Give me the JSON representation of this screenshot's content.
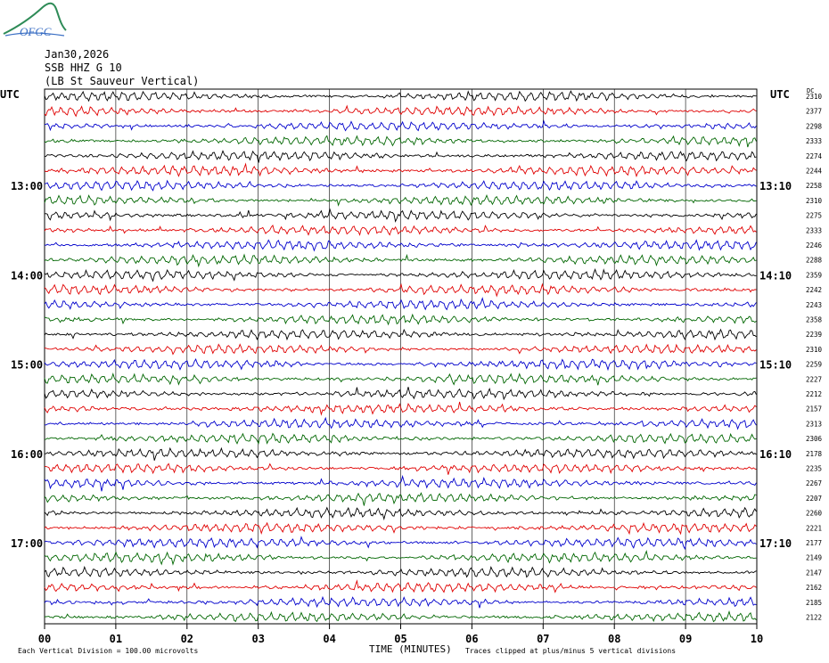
{
  "logo": {
    "text": "OFGC"
  },
  "header": {
    "date": "Jan30,2026",
    "station": "SSB HHZ G 10",
    "location": "(LB  St Sauveur Vertical)"
  },
  "axis_labels": {
    "left_utc": "UTC",
    "right_utc": "UTC",
    "dc_label": "DC"
  },
  "footer": {
    "xlabel": "TIME (MINUTES)",
    "scale_note": "Each Vertical Division =  100.00 microvolts",
    "clip_note": "Traces clipped at plus/minus 5 vertical divisions"
  },
  "colors": {
    "trace_cycle": [
      "#000000",
      "#e00000",
      "#0000cc",
      "#006600"
    ],
    "grid": "#000000",
    "frame": "#000000"
  },
  "chart_data": {
    "type": "line",
    "title": "",
    "xlabel": "TIME (MINUTES)",
    "ylabel": "",
    "x_ticks": [
      "00",
      "01",
      "02",
      "03",
      "04",
      "05",
      "06",
      "07",
      "08",
      "09",
      "10"
    ],
    "xlim": [
      0,
      10
    ],
    "rows_per_hour": 6,
    "left_hour_labels": [
      "13:00",
      "14:00",
      "15:00",
      "16:00",
      "17:00"
    ],
    "right_hour_labels": [
      "13:10",
      "14:10",
      "15:10",
      "16:10",
      "17:10"
    ],
    "dc_offsets": [
      2310,
      2377,
      2298,
      2333,
      2274,
      2244,
      2258,
      2310,
      2275,
      2333,
      2246,
      2288,
      2359,
      2242,
      2243,
      2358,
      2239,
      2310,
      2259,
      2227,
      2212,
      2157,
      2313,
      2306,
      2178,
      2235,
      2267,
      2207,
      2260,
      2221,
      2177,
      2149,
      2147,
      2162,
      2185,
      2122
    ],
    "grid": true
  }
}
